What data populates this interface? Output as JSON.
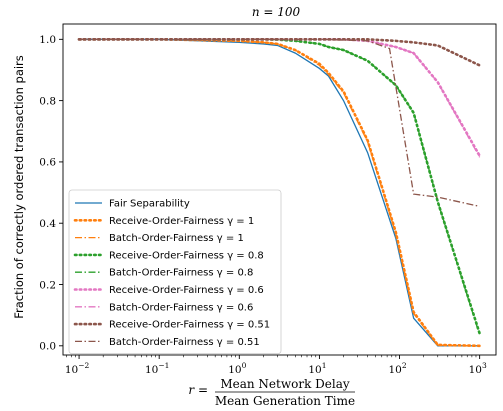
{
  "chart_data": {
    "type": "line",
    "title": "n = 100",
    "ylabel": "Fraction of correctly ordered transaction pairs",
    "xlabel": {
      "prefix": "r =",
      "numerator": "Mean Network Delay",
      "denominator": "Mean Generation Time"
    },
    "xscale": "log",
    "xlim": [
      0.0063,
      1600
    ],
    "ylim": [
      -0.03,
      1.05
    ],
    "xticks": [
      {
        "value": 0.01,
        "base": "10",
        "exp": "−2"
      },
      {
        "value": 0.1,
        "base": "10",
        "exp": "−1"
      },
      {
        "value": 1,
        "base": "10",
        "exp": "0"
      },
      {
        "value": 10,
        "base": "10",
        "exp": "1"
      },
      {
        "value": 100,
        "base": "10",
        "exp": "2"
      },
      {
        "value": 1000,
        "base": "10",
        "exp": "3"
      }
    ],
    "yticks": [
      0.0,
      0.2,
      0.4,
      0.6,
      0.8,
      1.0
    ],
    "ytick_labels": [
      "0.0",
      "0.2",
      "0.4",
      "0.6",
      "0.8",
      "1.0"
    ],
    "grid": false,
    "legend_position": "lower-left",
    "series": [
      {
        "name": "Fair Separability",
        "color": "#1f77b4",
        "style": "solid",
        "x": [
          0.01,
          0.1,
          1,
          2,
          3,
          5,
          10,
          13,
          20,
          40,
          90,
          150,
          300,
          1000
        ],
        "y": [
          1.0,
          1.0,
          0.99,
          0.985,
          0.98,
          0.955,
          0.905,
          0.88,
          0.8,
          0.63,
          0.35,
          0.09,
          0.0,
          0.0
        ]
      },
      {
        "name": "Receive-Order-Fairness γ = 1",
        "color": "#ff7f0e",
        "style": "dotted",
        "x": [
          0.01,
          0.1,
          1,
          2,
          3,
          5,
          10,
          13,
          20,
          40,
          90,
          150,
          300,
          1000
        ],
        "y": [
          1.0,
          1.0,
          0.995,
          0.99,
          0.985,
          0.965,
          0.92,
          0.89,
          0.83,
          0.67,
          0.37,
          0.11,
          0.003,
          0.0
        ]
      },
      {
        "name": "Batch-Order-Fairness γ = 1",
        "color": "#ff7f0e",
        "style": "dashdot",
        "x": [
          0.01,
          0.1,
          1,
          2,
          3,
          5,
          10,
          13,
          20,
          40,
          90,
          150,
          300,
          1000
        ],
        "y": [
          1.0,
          1.0,
          0.995,
          0.99,
          0.985,
          0.965,
          0.915,
          0.885,
          0.825,
          0.665,
          0.365,
          0.105,
          0.002,
          0.0
        ]
      },
      {
        "name": "Receive-Order-Fairness γ = 0.8",
        "color": "#2ca02c",
        "style": "dotted",
        "x": [
          0.01,
          0.1,
          1,
          2,
          3,
          5,
          10,
          13,
          20,
          40,
          90,
          150,
          300,
          1000
        ],
        "y": [
          1.0,
          1.0,
          1.0,
          1.0,
          0.999,
          0.995,
          0.985,
          0.975,
          0.965,
          0.93,
          0.85,
          0.76,
          0.47,
          0.04
        ]
      },
      {
        "name": "Batch-Order-Fairness γ = 0.8",
        "color": "#2ca02c",
        "style": "dashdot",
        "x": [
          0.01,
          0.1,
          1,
          2,
          3,
          5,
          10,
          13,
          20,
          40,
          90,
          150,
          300,
          1000
        ],
        "y": [
          1.0,
          1.0,
          1.0,
          1.0,
          0.999,
          0.995,
          0.985,
          0.975,
          0.965,
          0.93,
          0.85,
          0.76,
          0.47,
          0.035
        ]
      },
      {
        "name": "Receive-Order-Fairness γ = 0.6",
        "color": "#e377c2",
        "style": "dotted",
        "x": [
          0.01,
          0.1,
          1,
          10,
          20,
          40,
          90,
          150,
          300,
          1000
        ],
        "y": [
          1.0,
          1.0,
          1.0,
          1.0,
          1.0,
          0.995,
          0.975,
          0.955,
          0.86,
          0.62
        ]
      },
      {
        "name": "Batch-Order-Fairness γ = 0.6",
        "color": "#e377c2",
        "style": "dashdot",
        "x": [
          0.01,
          0.1,
          1,
          10,
          20,
          40,
          90,
          150,
          300,
          1000
        ],
        "y": [
          1.0,
          1.0,
          1.0,
          1.0,
          1.0,
          0.995,
          0.975,
          0.955,
          0.86,
          0.615
        ]
      },
      {
        "name": "Receive-Order-Fairness γ = 0.51",
        "color": "#8c564b",
        "style": "dotted",
        "x": [
          0.01,
          0.1,
          1,
          10,
          40,
          90,
          150,
          300,
          1000
        ],
        "y": [
          1.0,
          1.0,
          1.0,
          1.0,
          1.0,
          0.995,
          0.99,
          0.98,
          0.915
        ]
      },
      {
        "name": "Batch-Order-Fairness γ = 0.51",
        "color": "#8c564b",
        "style": "dashdot",
        "x": [
          0.01,
          0.1,
          1,
          10,
          40,
          75,
          150,
          300,
          1000
        ],
        "y": [
          1.0,
          1.0,
          1.0,
          1.0,
          0.995,
          0.97,
          0.495,
          0.485,
          0.455
        ]
      }
    ]
  }
}
